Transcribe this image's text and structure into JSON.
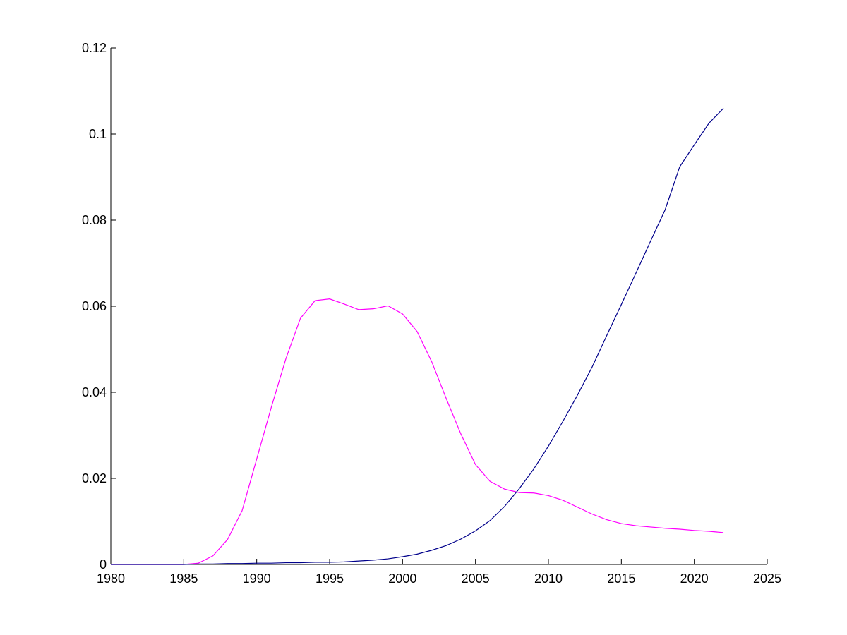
{
  "chart_data": {
    "type": "line",
    "title": "",
    "xlabel": "",
    "ylabel": "",
    "xlim": [
      1980,
      2025
    ],
    "ylim": [
      0,
      0.12
    ],
    "grid": false,
    "legend": "none",
    "xticks": [
      1980,
      1985,
      1990,
      1995,
      2000,
      2005,
      2010,
      2015,
      2020,
      2025
    ],
    "xtick_labels": [
      "1980",
      "1985",
      "1990",
      "1995",
      "2000",
      "2005",
      "2010",
      "2015",
      "2020",
      "2025"
    ],
    "yticks": [
      0,
      0.02,
      0.04,
      0.06,
      0.08,
      0.1,
      0.12
    ],
    "ytick_labels": [
      "0",
      "0.02",
      "0.04",
      "0.06",
      "0.08",
      "0.1",
      "0.12"
    ],
    "series": [
      {
        "color": "#ff00ff",
        "x": [
          1980,
          1981,
          1982,
          1983,
          1984,
          1985,
          1986,
          1987,
          1988,
          1989,
          1990,
          1991,
          1992,
          1993,
          1994,
          1995,
          1996,
          1997,
          1998,
          1999,
          2000,
          2001,
          2002,
          2003,
          2004,
          2005,
          2006,
          2007,
          2008,
          2009,
          2010,
          2011,
          2012,
          2013,
          2014,
          2015,
          2016,
          2017,
          2018,
          2019,
          2020,
          2021,
          2022
        ],
        "y": [
          0,
          0,
          0,
          0,
          0,
          0,
          0.0003,
          0.002,
          0.0058,
          0.0125,
          0.0245,
          0.0365,
          0.0478,
          0.0572,
          0.0613,
          0.0617,
          0.0605,
          0.0592,
          0.0594,
          0.0601,
          0.0582,
          0.0541,
          0.0471,
          0.0385,
          0.0303,
          0.0232,
          0.0193,
          0.0175,
          0.0167,
          0.0166,
          0.016,
          0.0149,
          0.0133,
          0.0117,
          0.0104,
          0.0095,
          0.009,
          0.0087,
          0.0084,
          0.0082,
          0.0079,
          0.0077,
          0.0074
        ]
      },
      {
        "color": "#00008b",
        "x": [
          1980,
          1981,
          1982,
          1983,
          1984,
          1985,
          1986,
          1987,
          1988,
          1989,
          1990,
          1991,
          1992,
          1993,
          1994,
          1995,
          1996,
          1997,
          1998,
          1999,
          2000,
          2001,
          2002,
          2003,
          2004,
          2005,
          2006,
          2007,
          2008,
          2009,
          2010,
          2011,
          2012,
          2013,
          2014,
          2015,
          2016,
          2017,
          2018,
          2019,
          2020,
          2021,
          2022
        ],
        "y": [
          0,
          0,
          0,
          0,
          0,
          0,
          0.0001,
          0.0001,
          0.0002,
          0.0002,
          0.0003,
          0.0003,
          0.0004,
          0.0004,
          0.0005,
          0.0005,
          0.0006,
          0.0008,
          0.001,
          0.0013,
          0.0018,
          0.0024,
          0.0033,
          0.0044,
          0.0059,
          0.0078,
          0.0102,
          0.0135,
          0.0176,
          0.0222,
          0.0275,
          0.0333,
          0.0394,
          0.0459,
          0.0532,
          0.0604,
          0.0677,
          0.0751,
          0.0824,
          0.0924,
          0.0975,
          0.1025,
          0.106
        ]
      }
    ]
  }
}
